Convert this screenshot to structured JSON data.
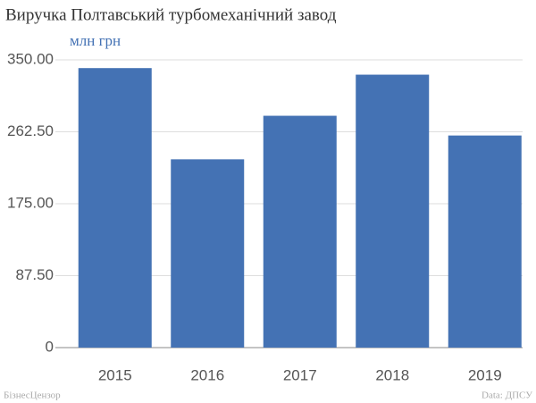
{
  "chart_data": {
    "type": "bar",
    "title": "Виручка Полтавський турбомеханічний завод",
    "subtitle": "млн грн",
    "categories": [
      "2015",
      "2016",
      "2017",
      "2018",
      "2019"
    ],
    "values": [
      340,
      229,
      282,
      332,
      258
    ],
    "color": "#4472b4",
    "ylim": [
      0,
      350
    ],
    "yticks": [
      0,
      {
        "value": 87.5,
        "label": "87.50"
      },
      {
        "value": 175,
        "label": "175.00"
      },
      {
        "value": 262.5,
        "label": "262.50"
      },
      {
        "value": 350,
        "label": "350.00"
      }
    ],
    "grid": true,
    "credit": "БізнесЦензор",
    "source": "Data: ДПСУ"
  }
}
